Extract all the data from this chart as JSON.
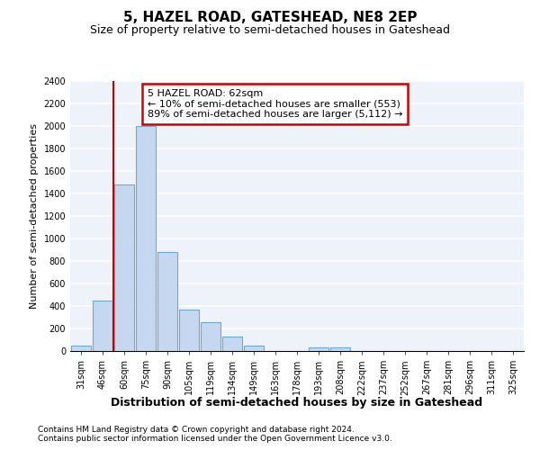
{
  "title": "5, HAZEL ROAD, GATESHEAD, NE8 2EP",
  "subtitle": "Size of property relative to semi-detached houses in Gateshead",
  "xlabel": "Distribution of semi-detached houses by size in Gateshead",
  "ylabel": "Number of semi-detached properties",
  "categories": [
    "31sqm",
    "46sqm",
    "60sqm",
    "75sqm",
    "90sqm",
    "105sqm",
    "119sqm",
    "134sqm",
    "149sqm",
    "163sqm",
    "178sqm",
    "193sqm",
    "208sqm",
    "222sqm",
    "237sqm",
    "252sqm",
    "267sqm",
    "281sqm",
    "296sqm",
    "311sqm",
    "325sqm"
  ],
  "values": [
    45,
    450,
    1480,
    2000,
    880,
    370,
    255,
    125,
    45,
    0,
    0,
    35,
    30,
    0,
    0,
    0,
    0,
    0,
    0,
    0,
    0
  ],
  "bar_color": "#c5d8f0",
  "bar_edge_color": "#6aaad4",
  "annotation_text": "5 HAZEL ROAD: 62sqm\n← 10% of semi-detached houses are smaller (553)\n89% of semi-detached houses are larger (5,112) →",
  "annotation_box_color": "white",
  "annotation_box_edge_color": "#cc0000",
  "vline_color": "#cc0000",
  "vline_x": 1.5,
  "ylim": [
    0,
    2400
  ],
  "yticks": [
    0,
    200,
    400,
    600,
    800,
    1000,
    1200,
    1400,
    1600,
    1800,
    2000,
    2200,
    2400
  ],
  "footnote1": "Contains HM Land Registry data © Crown copyright and database right 2024.",
  "footnote2": "Contains public sector information licensed under the Open Government Licence v3.0.",
  "plot_bg_color": "#eef2f9",
  "grid_color": "white",
  "title_fontsize": 11,
  "subtitle_fontsize": 9,
  "tick_fontsize": 7,
  "ylabel_fontsize": 8,
  "xlabel_fontsize": 9,
  "footnote_fontsize": 6.5,
  "annot_fontsize": 8
}
